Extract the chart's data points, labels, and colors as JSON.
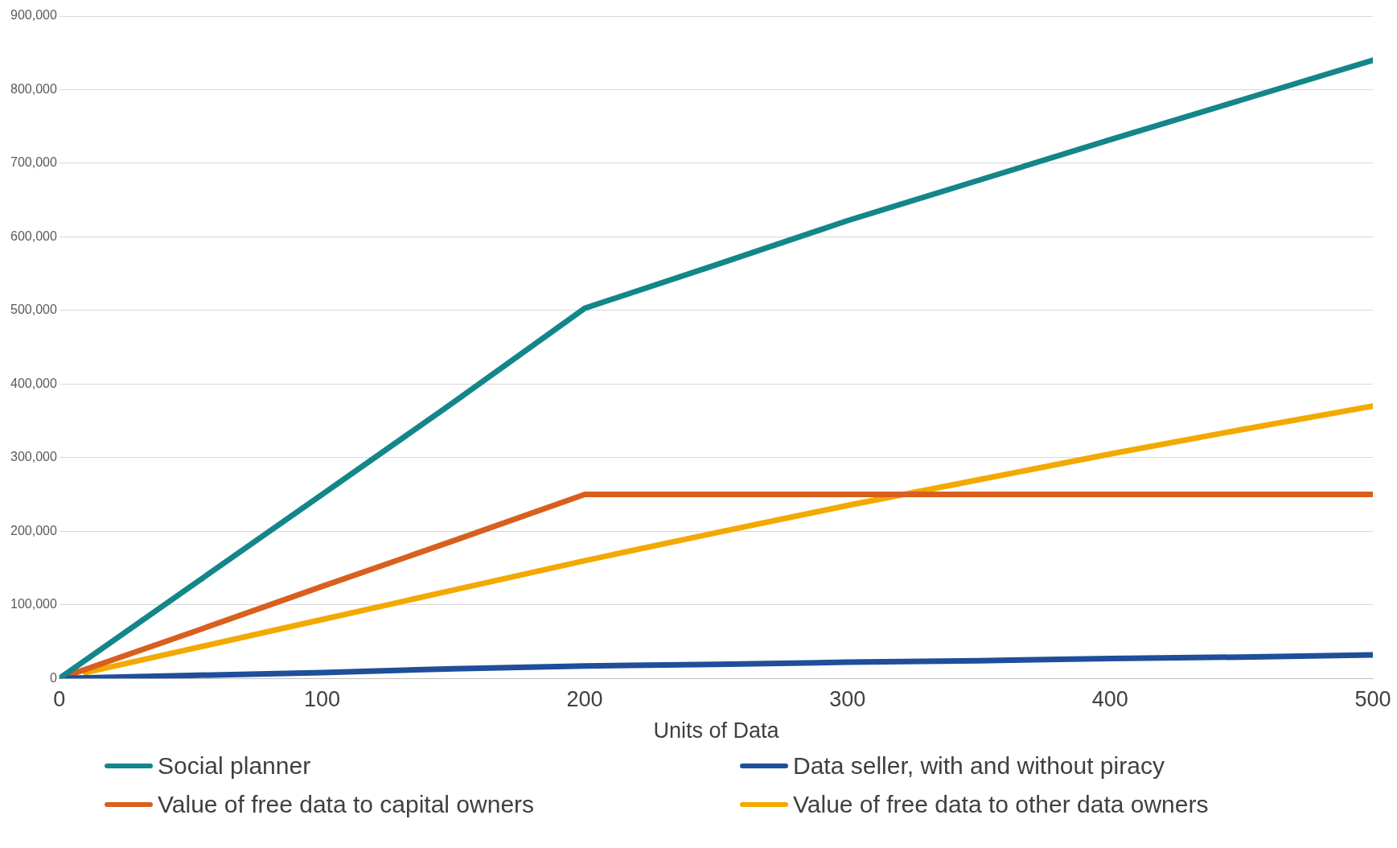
{
  "chart_data": {
    "type": "line",
    "xlabel": "Units of Data",
    "x": [
      0,
      50,
      100,
      150,
      200,
      250,
      300,
      350,
      400,
      450,
      500
    ],
    "series": [
      {
        "name": "Social planner",
        "color": "#13868a",
        "values": [
          0,
          125000,
          250000,
          375000,
          503000,
          562000,
          622000,
          677000,
          732000,
          786000,
          840000
        ]
      },
      {
        "name": "Data seller, with and without piracy",
        "color": "#1f4e9a",
        "values": [
          0,
          4000,
          8000,
          13000,
          17000,
          19000,
          22000,
          24000,
          27000,
          29000,
          32000
        ]
      },
      {
        "name": "Value of free data to capital owners",
        "color": "#d95f1e",
        "values": [
          0,
          62000,
          125000,
          187000,
          250000,
          250000,
          250000,
          250000,
          250000,
          250000,
          250000
        ]
      },
      {
        "name": "Value of free data to other data owners",
        "color": "#f2a900",
        "x": [
          10,
          50,
          100,
          150,
          200,
          250,
          300,
          350,
          400,
          450,
          500
        ],
        "values": [
          8000,
          40000,
          80000,
          120000,
          160000,
          198000,
          235000,
          270000,
          305000,
          338000,
          370000
        ]
      }
    ],
    "xlim": [
      0,
      500
    ],
    "xticks": [
      0,
      100,
      200,
      300,
      400,
      500
    ],
    "ylim": [
      0,
      900000
    ],
    "yticks": [
      0,
      {
        "value": 100000,
        "label": "100,000"
      },
      {
        "value": 200000,
        "label": "200,000"
      },
      {
        "value": 300000,
        "label": "300,000"
      },
      {
        "value": 400000,
        "label": "400,000"
      },
      {
        "value": 500000,
        "label": "500,000"
      },
      {
        "value": 600000,
        "label": "600,000"
      },
      {
        "value": 700000,
        "label": "700,000"
      },
      {
        "value": 800000,
        "label": "800,000"
      },
      {
        "value": 900000,
        "label": "900,000"
      }
    ],
    "grid": "y",
    "legend": "bottom",
    "marker": "none",
    "line_style": "solid"
  }
}
